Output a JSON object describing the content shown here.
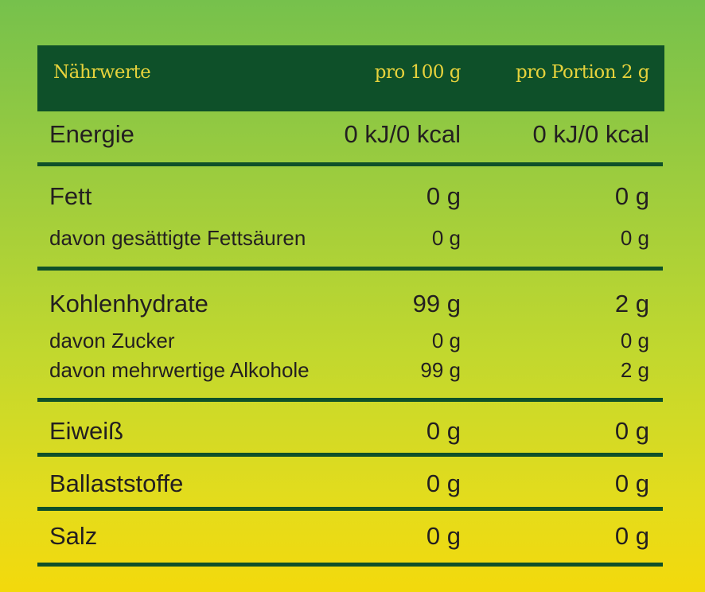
{
  "header": {
    "label": "Nährwerte",
    "col1": "pro 100 g",
    "col2": "pro Portion 2 g"
  },
  "rows": [
    {
      "label": "Energie",
      "v1": "0 kJ/0 kcal",
      "v2": "0 kJ/0 kcal"
    },
    {
      "label": "Fett",
      "v1": "0 g",
      "v2": "0 g"
    },
    {
      "label": "davon gesättigte Fettsäuren",
      "v1": "0 g",
      "v2": "0 g"
    },
    {
      "label": "Kohlenhydrate",
      "v1": "99 g",
      "v2": "2 g"
    },
    {
      "label": "davon Zucker",
      "v1": "0 g",
      "v2": "0 g"
    },
    {
      "label": "davon mehrwertige Alkohole",
      "v1": "99 g",
      "v2": "2 g"
    },
    {
      "label": "Eiweiß",
      "v1": "0 g",
      "v2": "0 g"
    },
    {
      "label": "Ballaststoffe",
      "v1": "0 g",
      "v2": "0 g"
    },
    {
      "label": "Salz",
      "v1": "0 g",
      "v2": "0 g"
    }
  ],
  "colors": {
    "dark_green": "#0e5029",
    "header_text": "#e6d23c",
    "text": "#231f20"
  }
}
